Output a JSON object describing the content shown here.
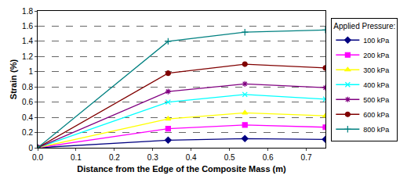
{
  "chart_data": {
    "type": "line",
    "x_label": "Distance from the Edge of the Composite Mass (m)",
    "y_label": "Strain (%)",
    "legend_title": "Applied Pressure:",
    "x": [
      0,
      0.34,
      0.54,
      0.75
    ],
    "series": [
      {
        "name": "100 kPa",
        "color": "#000080",
        "marker": "diamond",
        "values": [
          0,
          0.1,
          0.12,
          0.11
        ]
      },
      {
        "name": "200 kPa",
        "color": "#ff00ff",
        "marker": "square",
        "values": [
          0,
          0.25,
          0.3,
          0.27
        ]
      },
      {
        "name": "300 kPa",
        "color": "#ffff00",
        "marker": "triangle",
        "values": [
          0,
          0.38,
          0.46,
          0.42
        ]
      },
      {
        "name": "400 kPa",
        "color": "#00ffff",
        "marker": "x",
        "values": [
          0,
          0.6,
          0.7,
          0.64
        ]
      },
      {
        "name": "500 kPa",
        "color": "#800080",
        "marker": "asterisk",
        "values": [
          0,
          0.74,
          0.84,
          0.79
        ]
      },
      {
        "name": "600 kPa",
        "color": "#800000",
        "marker": "circle",
        "values": [
          0,
          0.98,
          1.1,
          1.05
        ]
      },
      {
        "name": "800 kPa",
        "color": "#008080",
        "marker": "plus",
        "values": [
          0,
          1.4,
          1.52,
          1.55
        ]
      }
    ],
    "xlim": [
      0,
      0.75
    ],
    "xticks": [
      {
        "value": 0,
        "label": "0.0"
      },
      0.1,
      0.2,
      0.3,
      0.4,
      0.5,
      0.6,
      0.7
    ],
    "ylim": [
      0,
      1.8
    ],
    "yticks": [
      0,
      0.2,
      0.4,
      0.6,
      0.8,
      1,
      1.2,
      1.4,
      1.6,
      1.8
    ],
    "grid": true,
    "legend": "right"
  }
}
